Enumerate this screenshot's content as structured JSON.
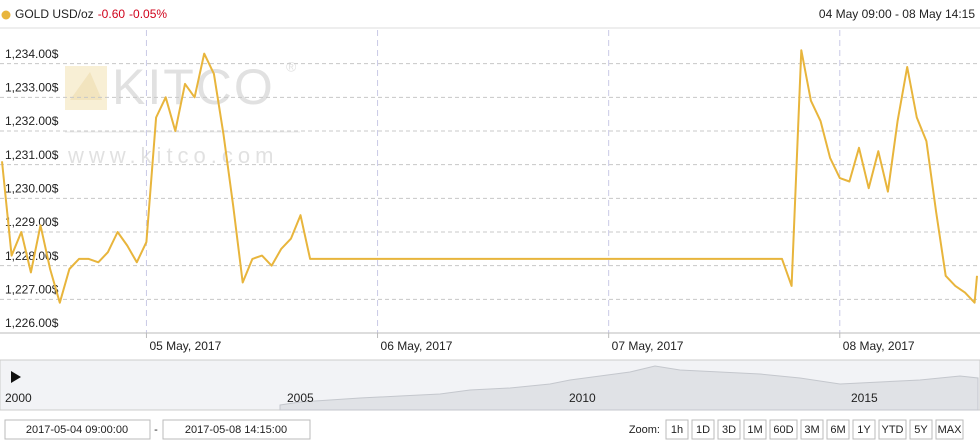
{
  "header": {
    "symbol": "GOLD USD/oz",
    "change": "-0.60",
    "change_pct": "-0.05%",
    "range": "04 May 09:00 - 08 May 14:15"
  },
  "watermark": {
    "logo": "KITCO",
    "registered": "®",
    "url": "www.kitco.com"
  },
  "chart_data": {
    "type": "line",
    "x": [
      "2017-05-04 09:00",
      "2017-05-04 10:00",
      "2017-05-04 11:00",
      "2017-05-04 12:00",
      "2017-05-04 13:00",
      "2017-05-04 14:00",
      "2017-05-04 15:00",
      "2017-05-04 16:00",
      "2017-05-04 17:00",
      "2017-05-04 18:00",
      "2017-05-04 19:00",
      "2017-05-04 20:00",
      "2017-05-04 21:00",
      "2017-05-04 22:00",
      "2017-05-04 23:00",
      "2017-05-05 00:00",
      "2017-05-05 01:00",
      "2017-05-05 02:00",
      "2017-05-05 03:00",
      "2017-05-05 04:00",
      "2017-05-05 05:00",
      "2017-05-05 06:00",
      "2017-05-05 07:00",
      "2017-05-05 08:00",
      "2017-05-05 09:00",
      "2017-05-05 10:00",
      "2017-05-05 11:00",
      "2017-05-05 12:00",
      "2017-05-05 13:00",
      "2017-05-05 14:00",
      "2017-05-05 15:00",
      "2017-05-05 16:00",
      "2017-05-05 17:00",
      "2017-05-07 18:00",
      "2017-05-07 19:00",
      "2017-05-07 20:00",
      "2017-05-07 21:00",
      "2017-05-07 22:00",
      "2017-05-07 23:00",
      "2017-05-08 00:00",
      "2017-05-08 01:00",
      "2017-05-08 02:00",
      "2017-05-08 03:00",
      "2017-05-08 04:00",
      "2017-05-08 05:00",
      "2017-05-08 06:00",
      "2017-05-08 07:00",
      "2017-05-08 08:00",
      "2017-05-08 09:00",
      "2017-05-08 10:00",
      "2017-05-08 11:00",
      "2017-05-08 12:00",
      "2017-05-08 13:00",
      "2017-05-08 14:00",
      "2017-05-08 14:15"
    ],
    "series": [
      {
        "name": "GOLD USD/oz",
        "color": "#e8b53c",
        "values": [
          1231.1,
          1228.3,
          1229.0,
          1227.8,
          1229.2,
          1227.9,
          1226.9,
          1227.9,
          1228.2,
          1228.2,
          1228.1,
          1228.4,
          1229.0,
          1228.6,
          1228.1,
          1228.7,
          1232.4,
          1233.0,
          1232.0,
          1233.4,
          1233.0,
          1234.3,
          1233.7,
          1231.9,
          1229.8,
          1227.5,
          1228.2,
          1228.3,
          1228.0,
          1228.5,
          1228.8,
          1229.5,
          1228.2,
          1228.2,
          1227.4,
          1234.4,
          1232.9,
          1232.3,
          1231.2,
          1230.6,
          1230.5,
          1231.5,
          1230.3,
          1231.4,
          1230.2,
          1232.3,
          1233.9,
          1232.4,
          1231.7,
          1229.6,
          1227.7,
          1227.4,
          1227.2,
          1226.9,
          1227.7
        ]
      }
    ],
    "xlim": [
      "2017-05-04 09:00",
      "2017-05-08 14:15"
    ],
    "xticks": [
      {
        "value": "2017-05-05 00:00",
        "label": "05 May, 2017"
      },
      {
        "value": "2017-05-06 00:00",
        "label": "06 May, 2017"
      },
      {
        "value": "2017-05-07 00:00",
        "label": "07 May, 2017"
      },
      {
        "value": "2017-05-08 00:00",
        "label": "08 May, 2017"
      }
    ],
    "ylim": [
      1226,
      1235
    ],
    "yticks": [
      {
        "value": 1226,
        "label": "1,226.00$"
      },
      {
        "value": 1227,
        "label": "1,227.00$"
      },
      {
        "value": 1228,
        "label": "1,228.00$"
      },
      {
        "value": 1229,
        "label": "1,229.00$"
      },
      {
        "value": 1230,
        "label": "1,230.00$"
      },
      {
        "value": 1231,
        "label": "1,231.00$"
      },
      {
        "value": 1232,
        "label": "1,232.00$"
      },
      {
        "value": 1233,
        "label": "1,233.00$"
      },
      {
        "value": 1234,
        "label": "1,234.00$"
      }
    ],
    "grid": true
  },
  "navigator": {
    "labels": [
      "2000",
      "2005",
      "2010",
      "2015"
    ]
  },
  "range_inputs": {
    "from": "2017-05-04 09:00:00",
    "separator": "-",
    "to": "2017-05-08 14:15:00"
  },
  "zoom": {
    "label": "Zoom:",
    "buttons": [
      "1h",
      "1D",
      "3D",
      "1M",
      "60D",
      "3M",
      "6M",
      "1Y",
      "YTD",
      "5Y",
      "MAX"
    ]
  }
}
